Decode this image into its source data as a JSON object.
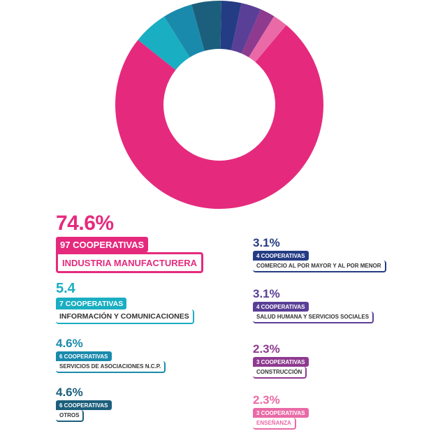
{
  "chart_data": {
    "type": "pie",
    "slices": [
      {
        "percent_label": "74.6%",
        "value": 74.6,
        "count_label": "97 COOPERATIVAS",
        "category": "INDUSTRIA MANUFACTURERA",
        "color": "#e52a7d"
      },
      {
        "percent_label": "5.4",
        "value": 5.4,
        "count_label": "7 COOPERATIVAS",
        "category": "INFORMACIÓN Y COMUNICACIONES",
        "color": "#1aaec2"
      },
      {
        "percent_label": "4.6%",
        "value": 4.6,
        "count_label": "6 COOPERATIVAS",
        "category": "SERVICIOS DE ASOCIACIONES N.C.P.",
        "color": "#1a8aac"
      },
      {
        "percent_label": "4.6%",
        "value": 4.6,
        "count_label": "6 COOPERATIVAS",
        "category": "OTROS",
        "color": "#1b5f7c"
      },
      {
        "percent_label": "3.1%",
        "value": 3.1,
        "count_label": "4 COOPERATIVAS",
        "category": "COMERCIO AL POR MAYOR Y AL POR MENOR",
        "color": "#243c84"
      },
      {
        "percent_label": "3.1%",
        "value": 3.1,
        "count_label": "4 COOPERATIVAS",
        "category": "SALUD HUMANA Y SERVICIOS SOCIALES",
        "color": "#5a3f96"
      },
      {
        "percent_label": "2.3%",
        "value": 2.3,
        "count_label": "3 COOPERATIVAS",
        "category": "CONSTRUCCIÓN",
        "color": "#8e3a8f"
      },
      {
        "percent_label": "2.3%",
        "value": 2.3,
        "count_label": "3 COOPERATIVAS",
        "category": "ENSEÑANZA",
        "color": "#e96aa6"
      }
    ]
  }
}
